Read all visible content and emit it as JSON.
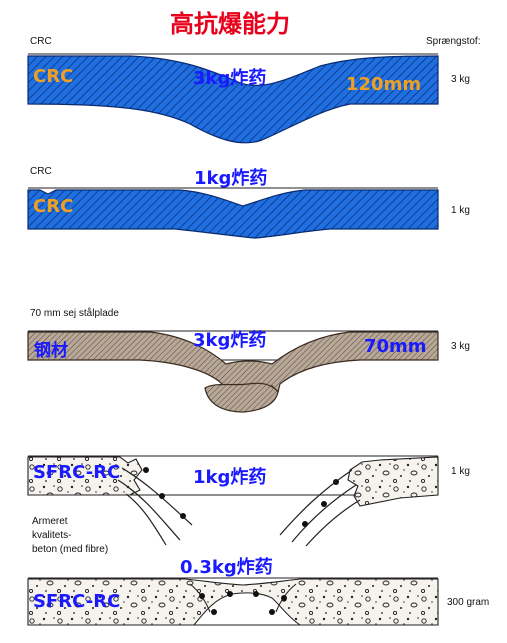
{
  "title": "高抗爆能力",
  "top_right_label": "Sprængstof:",
  "panels": [
    {
      "left_label": "CRC",
      "material_label": "CRC",
      "charge_label": "3kg炸药",
      "thickness_label": "120mm",
      "right_label": "3 kg"
    },
    {
      "left_label": "CRC",
      "material_label": "CRC",
      "charge_label": "1kg炸药",
      "right_label": "1 kg"
    },
    {
      "left_label": "70 mm sej stålplade",
      "material_label": "钢材",
      "charge_label": "3kg炸药",
      "thickness_label": "70mm",
      "right_label": "3 kg"
    },
    {
      "material_label": "SFRC-RC",
      "charge_label": "1kg炸药",
      "right_label": "1 kg",
      "side_text": [
        "Armeret",
        "kvalitets-",
        "beton (med fibre)"
      ]
    },
    {
      "material_label": "SFRC-RC",
      "charge_label": "0.3kg炸药",
      "right_label": "300 gram"
    }
  ],
  "colors": {
    "title": "#e8001c",
    "crc_fill": "#1f6fe0",
    "steel_fill": "#b8a898",
    "label_blue": "#1a1aff",
    "label_orange": "#f0a020"
  }
}
